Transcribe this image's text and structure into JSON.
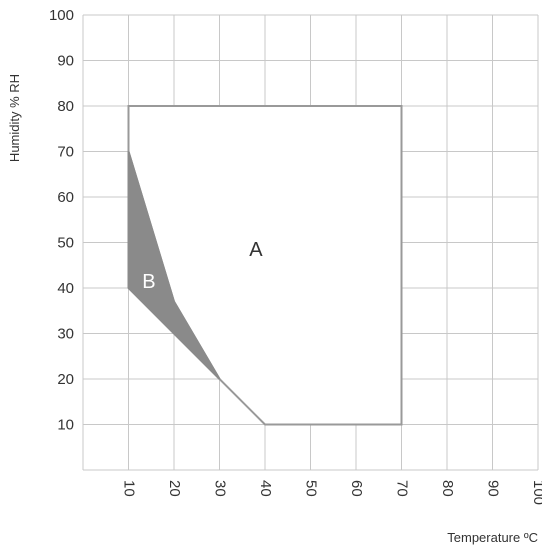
{
  "chart_data": {
    "type": "area",
    "xlabel": "Temperature ºC",
    "ylabel": "Humidity % RH",
    "xlim": [
      0,
      100
    ],
    "ylim": [
      0,
      100
    ],
    "x_ticks": [
      10,
      20,
      30,
      40,
      50,
      60,
      70,
      80,
      90,
      100
    ],
    "y_ticks": [
      10,
      20,
      30,
      40,
      50,
      60,
      70,
      80,
      90,
      100
    ],
    "grid": true,
    "regions": [
      {
        "name": "A",
        "fill": "#ffffff",
        "stroke": "#999999",
        "points": [
          [
            10,
            70
          ],
          [
            10,
            80
          ],
          [
            70,
            80
          ],
          [
            70,
            10
          ],
          [
            40,
            10
          ],
          [
            30,
            20
          ],
          [
            20,
            37
          ]
        ]
      },
      {
        "name": "B",
        "fill": "#8a8a8a",
        "stroke": "#8a8a8a",
        "points": [
          [
            10,
            70
          ],
          [
            20,
            37
          ],
          [
            30,
            20
          ],
          [
            20,
            30
          ],
          [
            10,
            40
          ]
        ]
      }
    ],
    "region_label_positions": [
      {
        "name": "A",
        "x": 38,
        "y": 47
      },
      {
        "name": "B",
        "x": 14.5,
        "y": 40
      }
    ],
    "colors": {
      "grid": "#c8c8c8",
      "text": "#333333",
      "label_A": "#333333",
      "label_B": "#ffffff"
    }
  }
}
